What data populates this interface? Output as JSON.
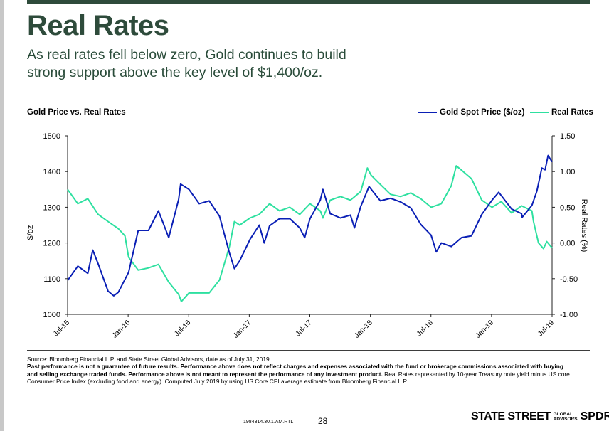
{
  "title": "Real Rates",
  "subtitle_line1": "As real rates fell below zero, Gold continues to build",
  "subtitle_line2": "strong support above the key level of $1,400/oz.",
  "colors": {
    "gold": "#0a1fb5",
    "real_rates": "#2ee0a0",
    "brand_green": "#2e4b3b"
  },
  "chart_data": {
    "type": "line",
    "title": "Gold Price vs. Real Rates",
    "ylabel": "$/oz",
    "y2label": "Real Rates (%)",
    "ylim": [
      1000,
      1500
    ],
    "y2lim": [
      -1.0,
      1.5
    ],
    "y_ticks": [
      "1000",
      "1100",
      "1200",
      "1300",
      "1400",
      "1500"
    ],
    "y2_ticks": [
      "-1.00",
      "-0.50",
      "0.00",
      "0.50",
      "1.00",
      "1.50"
    ],
    "x_ticks": [
      "Jul-15",
      "Jan-16",
      "Jul-16",
      "Jan-17",
      "Jul-17",
      "Jan-18",
      "Jul-18",
      "Jan-19",
      "Jul-19"
    ],
    "xlim": [
      "2015-07-31",
      "2019-07-31"
    ],
    "legend_position": "top-right",
    "series": [
      {
        "name": "Gold Spot Price ($/oz)",
        "axis": "left",
        "points": [
          [
            "2015-07-31",
            1095
          ],
          [
            "2015-08-31",
            1135
          ],
          [
            "2015-09-30",
            1115
          ],
          [
            "2015-10-15",
            1180
          ],
          [
            "2015-10-31",
            1142
          ],
          [
            "2015-11-30",
            1065
          ],
          [
            "2015-12-17",
            1052
          ],
          [
            "2015-12-31",
            1062
          ],
          [
            "2016-01-31",
            1118
          ],
          [
            "2016-02-29",
            1235
          ],
          [
            "2016-03-31",
            1235
          ],
          [
            "2016-04-30",
            1290
          ],
          [
            "2016-05-31",
            1215
          ],
          [
            "2016-06-30",
            1322
          ],
          [
            "2016-07-06",
            1365
          ],
          [
            "2016-07-31",
            1350
          ],
          [
            "2016-08-31",
            1310
          ],
          [
            "2016-09-30",
            1318
          ],
          [
            "2016-10-31",
            1275
          ],
          [
            "2016-11-30",
            1172
          ],
          [
            "2016-12-15",
            1128
          ],
          [
            "2016-12-31",
            1150
          ],
          [
            "2017-01-31",
            1210
          ],
          [
            "2017-02-28",
            1250
          ],
          [
            "2017-03-15",
            1200
          ],
          [
            "2017-03-31",
            1248
          ],
          [
            "2017-04-30",
            1268
          ],
          [
            "2017-05-31",
            1268
          ],
          [
            "2017-06-30",
            1242
          ],
          [
            "2017-07-15",
            1215
          ],
          [
            "2017-07-31",
            1268
          ],
          [
            "2017-08-31",
            1320
          ],
          [
            "2017-09-08",
            1350
          ],
          [
            "2017-09-30",
            1282
          ],
          [
            "2017-10-31",
            1270
          ],
          [
            "2017-11-30",
            1278
          ],
          [
            "2017-12-12",
            1242
          ],
          [
            "2017-12-31",
            1302
          ],
          [
            "2018-01-25",
            1358
          ],
          [
            "2018-02-28",
            1318
          ],
          [
            "2018-03-31",
            1325
          ],
          [
            "2018-04-30",
            1315
          ],
          [
            "2018-05-31",
            1298
          ],
          [
            "2018-06-30",
            1252
          ],
          [
            "2018-07-31",
            1222
          ],
          [
            "2018-08-16",
            1175
          ],
          [
            "2018-08-31",
            1200
          ],
          [
            "2018-09-30",
            1190
          ],
          [
            "2018-10-31",
            1215
          ],
          [
            "2018-11-30",
            1220
          ],
          [
            "2018-12-31",
            1280
          ],
          [
            "2019-01-31",
            1320
          ],
          [
            "2019-02-20",
            1342
          ],
          [
            "2019-03-31",
            1295
          ],
          [
            "2019-04-30",
            1282
          ],
          [
            "2019-05-02",
            1272
          ],
          [
            "2019-05-31",
            1305
          ],
          [
            "2019-06-15",
            1345
          ],
          [
            "2019-06-30",
            1410
          ],
          [
            "2019-07-10",
            1405
          ],
          [
            "2019-07-19",
            1445
          ],
          [
            "2019-07-31",
            1427
          ]
        ]
      },
      {
        "name": "Real Rates",
        "axis": "right",
        "points": [
          [
            "2015-07-31",
            0.75
          ],
          [
            "2015-08-31",
            0.55
          ],
          [
            "2015-09-30",
            0.62
          ],
          [
            "2015-10-31",
            0.4
          ],
          [
            "2015-11-30",
            0.3
          ],
          [
            "2015-12-31",
            0.2
          ],
          [
            "2016-01-20",
            0.1
          ],
          [
            "2016-01-31",
            -0.2
          ],
          [
            "2016-02-29",
            -0.38
          ],
          [
            "2016-03-31",
            -0.35
          ],
          [
            "2016-04-30",
            -0.3
          ],
          [
            "2016-05-31",
            -0.55
          ],
          [
            "2016-06-30",
            -0.72
          ],
          [
            "2016-07-08",
            -0.82
          ],
          [
            "2016-07-31",
            -0.7
          ],
          [
            "2016-08-31",
            -0.7
          ],
          [
            "2016-09-30",
            -0.7
          ],
          [
            "2016-10-31",
            -0.52
          ],
          [
            "2016-11-30",
            -0.05
          ],
          [
            "2016-12-15",
            0.3
          ],
          [
            "2016-12-31",
            0.25
          ],
          [
            "2017-01-31",
            0.35
          ],
          [
            "2017-02-28",
            0.4
          ],
          [
            "2017-03-31",
            0.55
          ],
          [
            "2017-04-30",
            0.45
          ],
          [
            "2017-05-31",
            0.5
          ],
          [
            "2017-06-30",
            0.4
          ],
          [
            "2017-07-31",
            0.55
          ],
          [
            "2017-08-31",
            0.45
          ],
          [
            "2017-09-08",
            0.35
          ],
          [
            "2017-09-30",
            0.6
          ],
          [
            "2017-10-31",
            0.65
          ],
          [
            "2017-11-30",
            0.6
          ],
          [
            "2017-12-31",
            0.72
          ],
          [
            "2018-01-20",
            1.05
          ],
          [
            "2018-01-31",
            0.95
          ],
          [
            "2018-02-28",
            0.82
          ],
          [
            "2018-03-31",
            0.68
          ],
          [
            "2018-04-30",
            0.65
          ],
          [
            "2018-05-31",
            0.7
          ],
          [
            "2018-06-30",
            0.62
          ],
          [
            "2018-07-31",
            0.5
          ],
          [
            "2018-08-31",
            0.55
          ],
          [
            "2018-09-30",
            0.8
          ],
          [
            "2018-10-15",
            1.08
          ],
          [
            "2018-10-31",
            1.02
          ],
          [
            "2018-11-30",
            0.9
          ],
          [
            "2018-12-31",
            0.6
          ],
          [
            "2019-01-31",
            0.5
          ],
          [
            "2019-02-28",
            0.58
          ],
          [
            "2019-03-31",
            0.42
          ],
          [
            "2019-04-30",
            0.52
          ],
          [
            "2019-05-31",
            0.45
          ],
          [
            "2019-06-05",
            0.3
          ],
          [
            "2019-06-20",
            0.0
          ],
          [
            "2019-07-05",
            -0.08
          ],
          [
            "2019-07-15",
            0.02
          ],
          [
            "2019-07-31",
            -0.07
          ]
        ]
      }
    ]
  },
  "source": "Source: Bloomberg Financial L.P. and State Street Global Advisors, date as of July 31, 2019.",
  "disclaimer_bold": "Past performance is not a guarantee of future results. Performance above does not reflect charges and expenses associated with the fund or brokerage commissions associated with buying and selling exchange traded funds. Performance above is not meant to represent the performance of any investment product.",
  "disclaimer_normal": " Real Rates represented by 10-year Treasury note yield minus US core Consumer Price Index (excluding food and energy). Computed July 2019 by using US Core CPI average estimate from Bloomberg Financial L.P.",
  "footer": {
    "code": "1984314.30.1.AM.RTL",
    "page_number": "28",
    "brand_main": "STATE STREET",
    "brand_small_1": "GLOBAL",
    "brand_small_2": "ADVISORS",
    "brand_product": "SPDR",
    "brand_mark": "®"
  }
}
